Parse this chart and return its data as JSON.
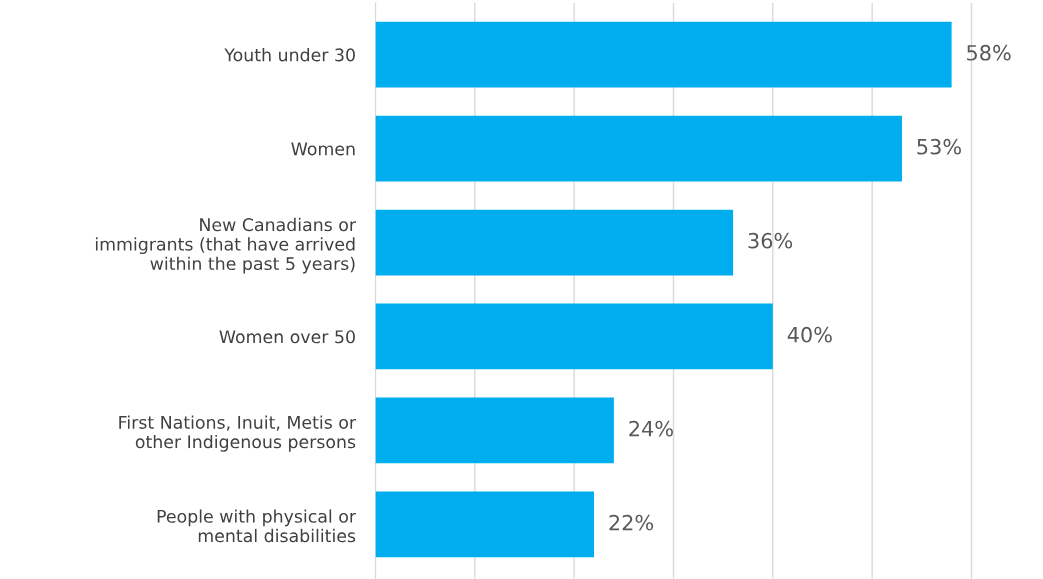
{
  "chart_data": {
    "type": "bar",
    "orientation": "horizontal",
    "categories": [
      "Youth under 30",
      "Women",
      "New Canadians or\nimmigrants (that have arrived\nwithin the past 5 years)",
      "Women over 50",
      "First Nations, Inuit, Metis or\nother Indigenous persons",
      "People with physical or\nmental disabilities"
    ],
    "values": [
      58,
      53,
      36,
      40,
      24,
      22
    ],
    "value_labels": [
      "58%",
      "53%",
      "36%",
      "40%",
      "24%",
      "22%"
    ],
    "color": "#00aeef",
    "grid": "x",
    "tick_labels": "y",
    "legend": false
  }
}
